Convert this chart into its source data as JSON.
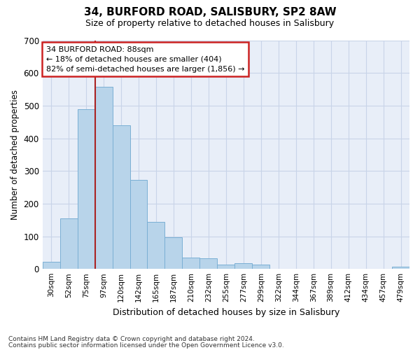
{
  "title": "34, BURFORD ROAD, SALISBURY, SP2 8AW",
  "subtitle": "Size of property relative to detached houses in Salisbury",
  "xlabel": "Distribution of detached houses by size in Salisbury",
  "ylabel": "Number of detached properties",
  "bar_color": "#b8d4ea",
  "bar_edgecolor": "#7aafd4",
  "background_color": "#e8eef8",
  "grid_color": "#c8d4e8",
  "categories": [
    "30sqm",
    "52sqm",
    "75sqm",
    "97sqm",
    "120sqm",
    "142sqm",
    "165sqm",
    "187sqm",
    "210sqm",
    "232sqm",
    "255sqm",
    "277sqm",
    "299sqm",
    "322sqm",
    "344sqm",
    "367sqm",
    "389sqm",
    "412sqm",
    "434sqm",
    "457sqm",
    "479sqm"
  ],
  "values": [
    22,
    155,
    490,
    558,
    440,
    273,
    145,
    97,
    35,
    32,
    14,
    17,
    13,
    0,
    0,
    0,
    0,
    0,
    0,
    0,
    7
  ],
  "ylim": [
    0,
    700
  ],
  "yticks": [
    0,
    100,
    200,
    300,
    400,
    500,
    600,
    700
  ],
  "annotation_text": "34 BURFORD ROAD: 88sqm\n← 18% of detached houses are smaller (404)\n82% of semi-detached houses are larger (1,856) →",
  "vline_color": "#aa2222",
  "annotation_box_facecolor": "#ffffff",
  "annotation_box_edgecolor": "#cc2222",
  "footer1": "Contains HM Land Registry data © Crown copyright and database right 2024.",
  "footer2": "Contains public sector information licensed under the Open Government Licence v3.0."
}
